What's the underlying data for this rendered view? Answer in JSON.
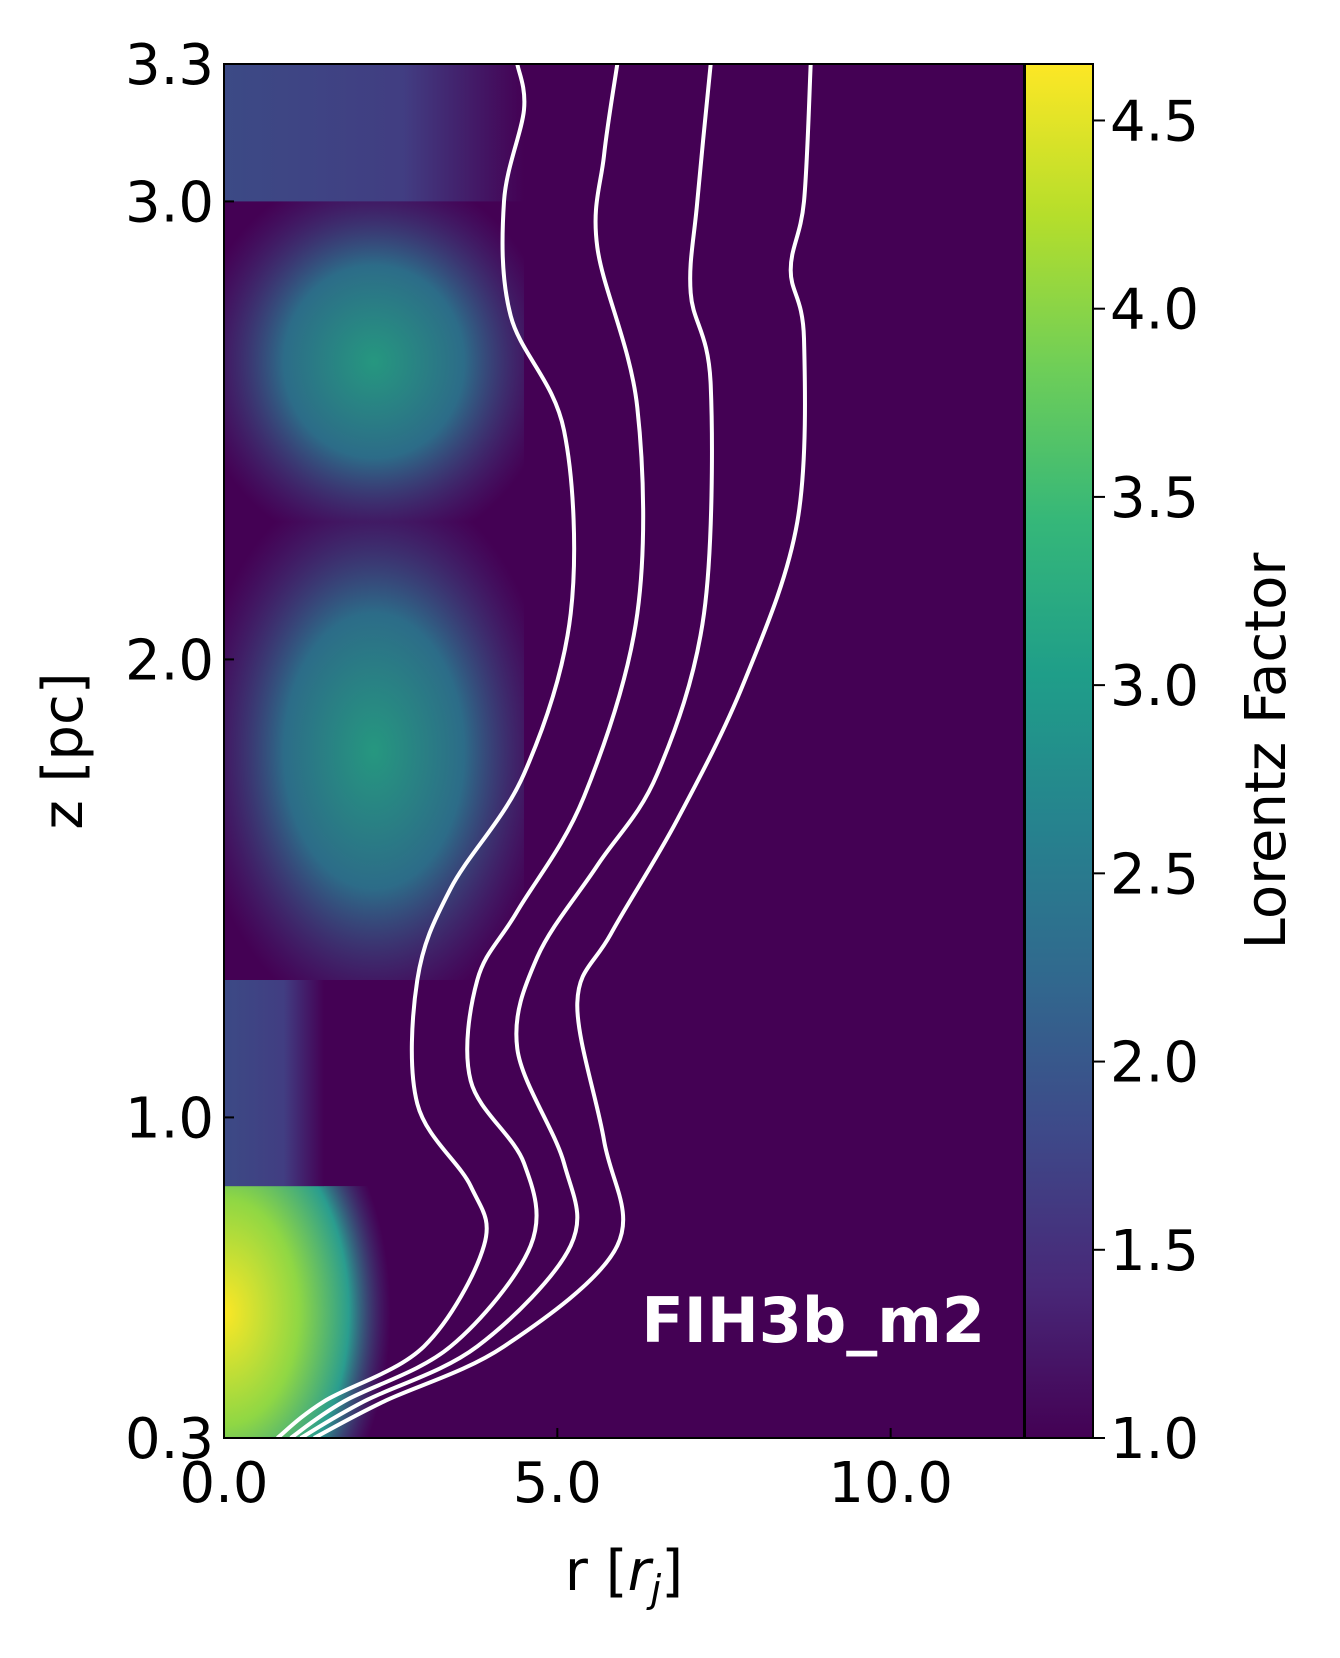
{
  "chart_data": {
    "type": "heatmap",
    "title": "",
    "xlabel": "r",
    "xlabel_unit_base": "r",
    "xlabel_unit_sub": "j",
    "ylabel": "z [pc]",
    "xlim": [
      0.0,
      12.0
    ],
    "ylim": [
      0.3,
      3.3
    ],
    "x_ticks": [
      0.0,
      5.0,
      10.0
    ],
    "x_tick_labels": [
      "0.0",
      "5.0",
      "10.0"
    ],
    "y_ticks": [
      0.3,
      1.0,
      2.0,
      3.0,
      3.3
    ],
    "y_tick_labels": [
      "0.3",
      "1.0",
      "2.0",
      "3.0",
      "3.3"
    ],
    "annotation": "FIH3b_m2",
    "colorbar": {
      "label": "Lorentz Factor",
      "range": [
        1.0,
        4.65
      ],
      "ticks": [
        1.0,
        1.5,
        2.0,
        2.5,
        3.0,
        3.5,
        4.0,
        4.5
      ],
      "tick_labels": [
        "1.0",
        "1.5",
        "2.0",
        "2.5",
        "3.0",
        "3.5",
        "4.0",
        "4.5"
      ],
      "colormap": "viridis",
      "colors": [
        "#440154",
        "#482878",
        "#3e4989",
        "#31688e",
        "#26828e",
        "#1f9e89",
        "#35b779",
        "#6ece58",
        "#b5de2b",
        "#fde725"
      ]
    },
    "regions": [
      {
        "z_range": [
          0.3,
          0.85
        ],
        "r_max": 2.5,
        "peak": 4.6
      },
      {
        "z_range": [
          0.85,
          1.3
        ],
        "r_max": 1.5,
        "peak": 2.0
      },
      {
        "z_range": [
          1.3,
          2.3
        ],
        "r_max": 4.5,
        "peak": 3.4
      },
      {
        "z_range": [
          2.3,
          3.0
        ],
        "r_max": 4.5,
        "peak": 2.8
      },
      {
        "z_range": [
          3.0,
          3.3
        ],
        "r_max": 4.5,
        "peak": 2.4
      }
    ],
    "contours": [
      {
        "name": "",
        "color": "#ffffff",
        "points": [
          [
            0.8,
            0.3
          ],
          [
            1.5,
            0.38
          ],
          [
            3.0,
            0.5
          ],
          [
            3.9,
            0.72
          ],
          [
            3.7,
            0.85
          ],
          [
            2.9,
            1.03
          ],
          [
            2.9,
            1.3
          ],
          [
            3.4,
            1.5
          ],
          [
            4.5,
            1.75
          ],
          [
            5.2,
            2.1
          ],
          [
            5.1,
            2.5
          ],
          [
            4.3,
            2.75
          ],
          [
            4.2,
            3.0
          ],
          [
            4.5,
            3.2
          ],
          [
            4.4,
            3.3
          ]
        ]
      },
      {
        "name": "",
        "color": "#ffffff",
        "points": [
          [
            1.0,
            0.3
          ],
          [
            1.8,
            0.38
          ],
          [
            3.4,
            0.5
          ],
          [
            4.6,
            0.72
          ],
          [
            4.5,
            0.9
          ],
          [
            3.7,
            1.08
          ],
          [
            3.8,
            1.3
          ],
          [
            4.4,
            1.45
          ],
          [
            5.4,
            1.7
          ],
          [
            6.2,
            2.1
          ],
          [
            6.2,
            2.55
          ],
          [
            5.6,
            2.9
          ],
          [
            5.7,
            3.1
          ],
          [
            5.9,
            3.3
          ]
        ]
      },
      {
        "name": "",
        "color": "#ffffff",
        "points": [
          [
            1.15,
            0.3
          ],
          [
            2.1,
            0.38
          ],
          [
            3.8,
            0.5
          ],
          [
            5.2,
            0.72
          ],
          [
            5.1,
            0.9
          ],
          [
            4.4,
            1.15
          ],
          [
            4.7,
            1.35
          ],
          [
            5.6,
            1.55
          ],
          [
            6.5,
            1.75
          ],
          [
            7.2,
            2.1
          ],
          [
            7.3,
            2.6
          ],
          [
            7.0,
            2.8
          ],
          [
            7.1,
            3.0
          ],
          [
            7.3,
            3.3
          ]
        ]
      },
      {
        "name": "",
        "color": "#ffffff",
        "points": [
          [
            1.35,
            0.3
          ],
          [
            2.4,
            0.38
          ],
          [
            4.2,
            0.5
          ],
          [
            5.9,
            0.72
          ],
          [
            5.7,
            0.95
          ],
          [
            5.3,
            1.25
          ],
          [
            5.8,
            1.4
          ],
          [
            6.8,
            1.65
          ],
          [
            7.8,
            1.95
          ],
          [
            8.6,
            2.3
          ],
          [
            8.7,
            2.7
          ],
          [
            8.5,
            2.85
          ],
          [
            8.7,
            3.0
          ],
          [
            8.8,
            3.3
          ]
        ]
      }
    ]
  }
}
